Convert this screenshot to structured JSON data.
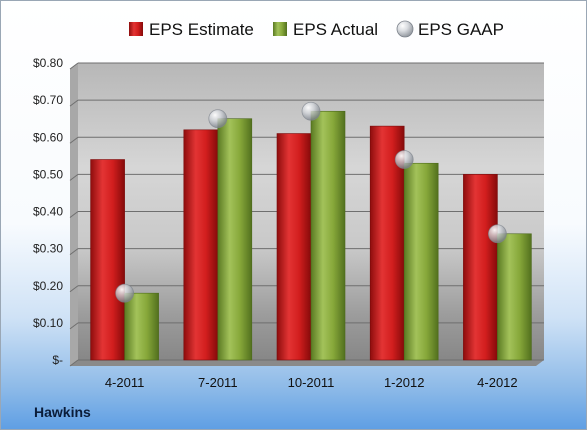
{
  "company": "Hawkins",
  "chart_data": {
    "type": "bar",
    "categories": [
      "4-2011",
      "7-2011",
      "10-2011",
      "1-2012",
      "4-2012"
    ],
    "series": [
      {
        "name": "EPS Estimate",
        "type": "bar",
        "color": "#d42020",
        "values": [
          0.54,
          0.62,
          0.61,
          0.63,
          0.5
        ]
      },
      {
        "name": "EPS Actual",
        "type": "bar",
        "color": "#8aab3a",
        "values": [
          0.18,
          0.65,
          0.67,
          0.53,
          0.34
        ]
      },
      {
        "name": "EPS GAAP",
        "type": "marker",
        "color": "#b4b8bf",
        "values": [
          0.18,
          0.65,
          0.67,
          0.54,
          0.34
        ]
      }
    ],
    "ylim": [
      0,
      0.8
    ],
    "yticks": [
      0,
      0.1,
      0.2,
      0.3,
      0.4,
      0.5,
      0.6,
      0.7,
      0.8
    ],
    "ytick_labels": [
      "$-",
      "$0.10",
      "$0.20",
      "$0.30",
      "$0.40",
      "$0.50",
      "$0.60",
      "$0.70",
      "$0.80"
    ],
    "grid": true,
    "legend_position": "top"
  }
}
